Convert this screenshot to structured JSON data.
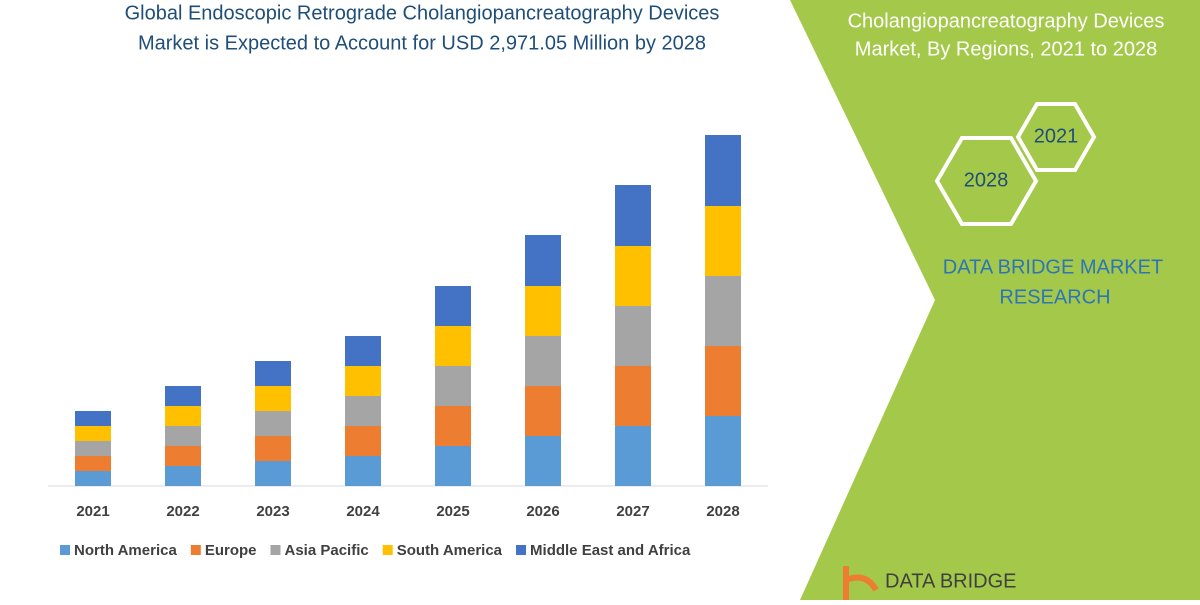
{
  "chart_data": {
    "type": "bar",
    "stacked": true,
    "title": [
      "Global Endoscopic Retrograde Cholangiopancreatography Devices",
      "Market is Expected to Account for USD 2,971.05 Million by 2028"
    ],
    "side_title": [
      "Cholangiopancreatography Devices",
      "Market, By Regions, 2021 to 2028"
    ],
    "badges": [
      "2021",
      "2028"
    ],
    "brand": [
      "DATA BRIDGE MARKET",
      "RESEARCH"
    ],
    "logo": "DATA BRIDGE",
    "categories": [
      "2021",
      "2022",
      "2023",
      "2024",
      "2025",
      "2026",
      "2027",
      "2028"
    ],
    "series": [
      {
        "name": "North America",
        "color": "#5b9bd5",
        "values": [
          15,
          20,
          25,
          30,
          40,
          50,
          60,
          70
        ]
      },
      {
        "name": "Europe",
        "color": "#ed7d31",
        "values": [
          15,
          20,
          25,
          30,
          40,
          50,
          60,
          70
        ]
      },
      {
        "name": "Asia Pacific",
        "color": "#a5a5a5",
        "values": [
          15,
          20,
          25,
          30,
          40,
          50,
          60,
          70
        ]
      },
      {
        "name": "South America",
        "color": "#ffc000",
        "values": [
          15,
          20,
          25,
          30,
          40,
          50,
          60,
          70
        ]
      },
      {
        "name": "Middle East and Africa",
        "color": "#4472c4",
        "values": [
          15,
          20,
          25,
          30,
          40,
          51,
          61,
          71
        ]
      }
    ]
  }
}
